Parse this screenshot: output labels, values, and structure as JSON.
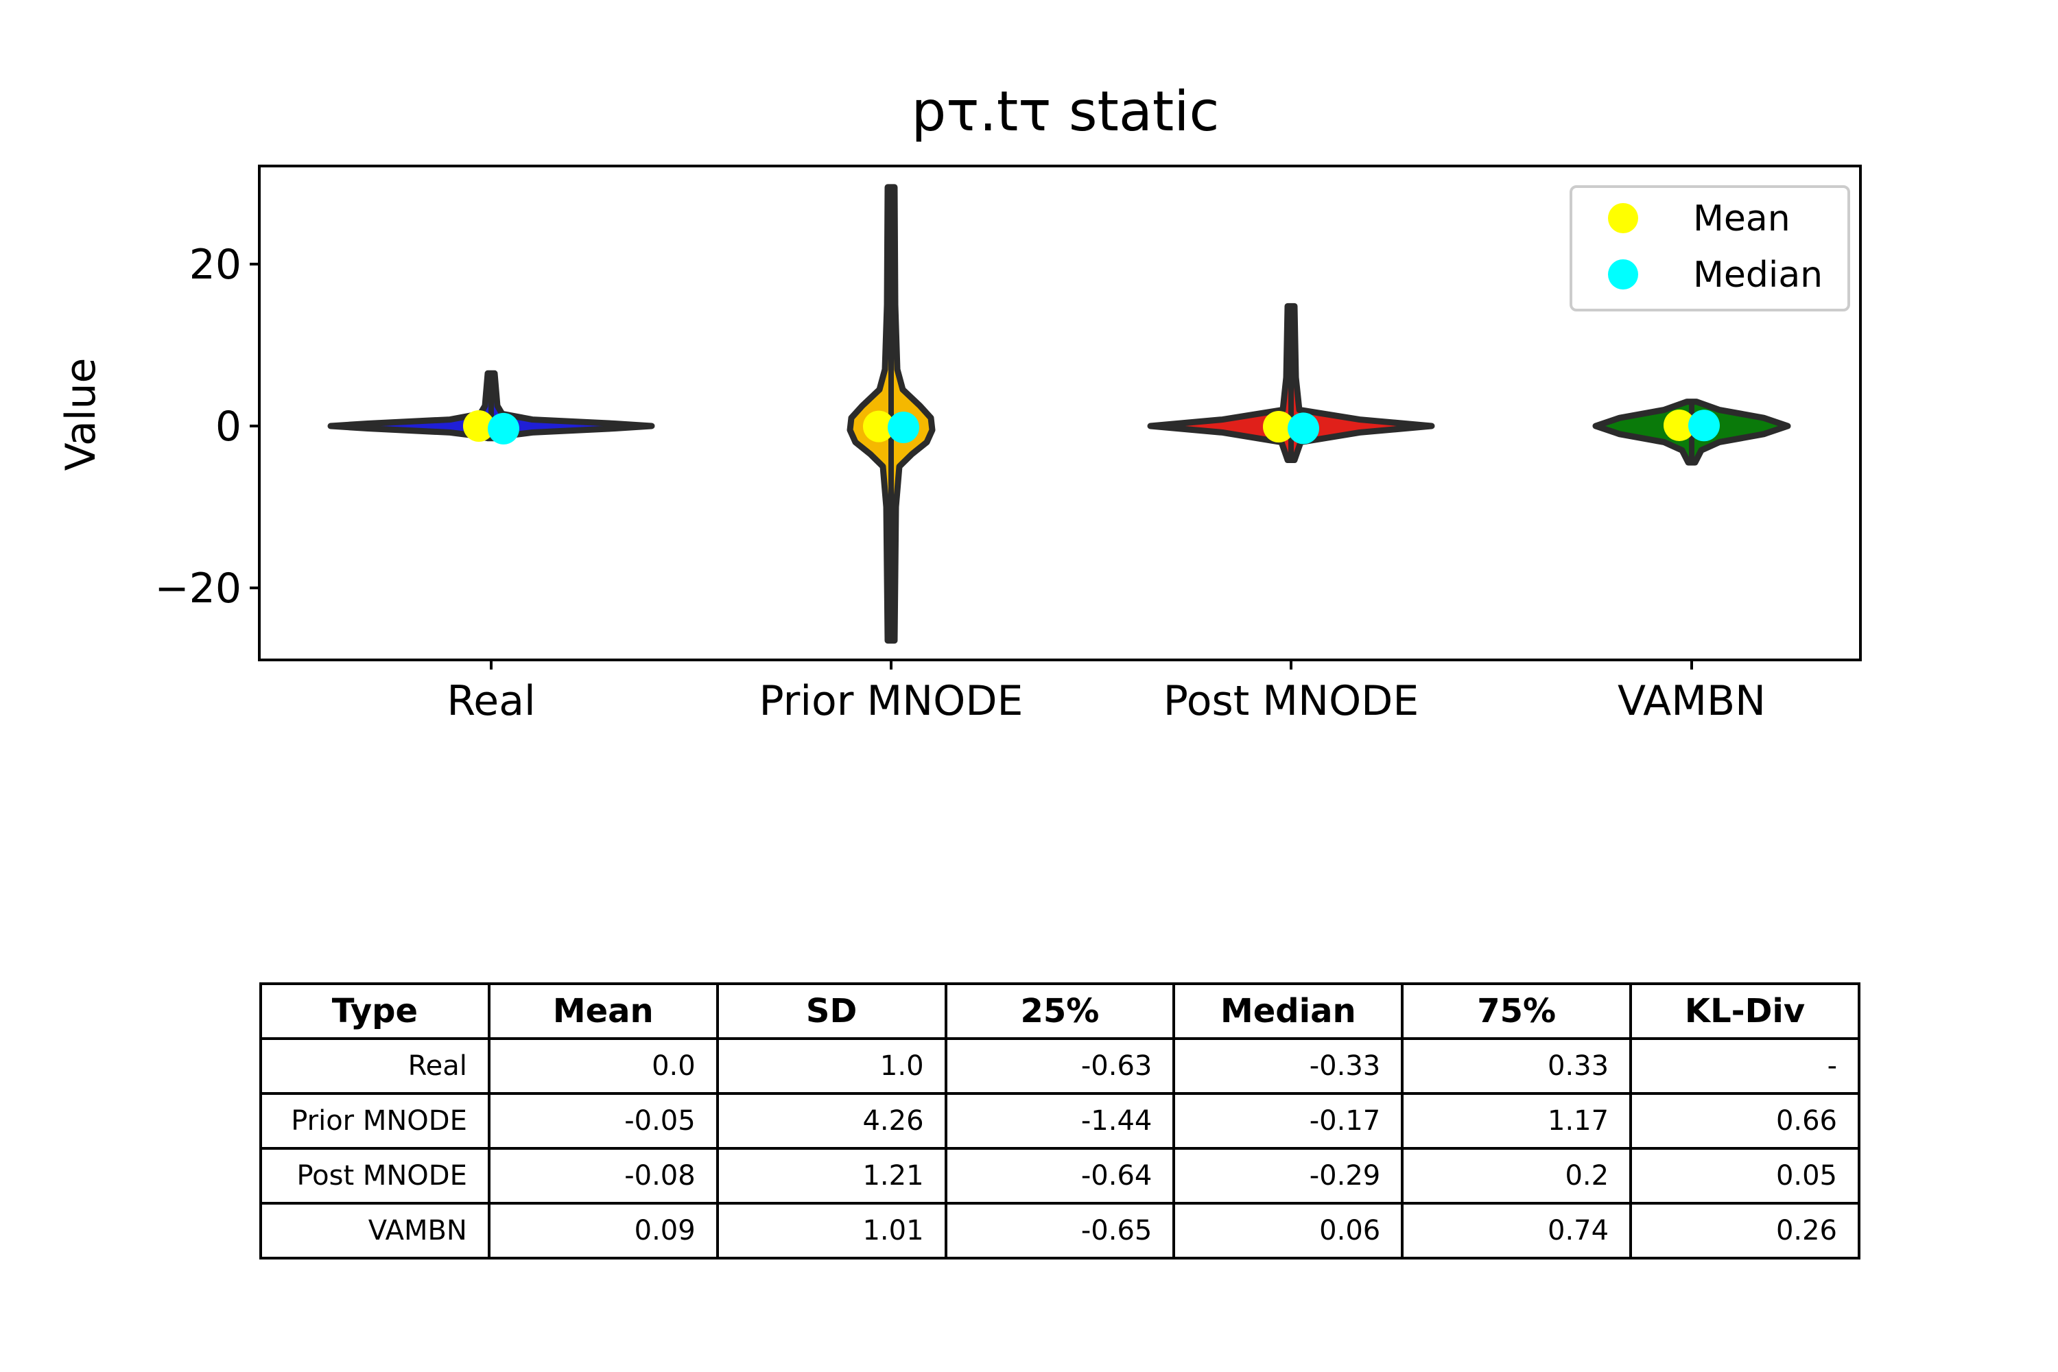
{
  "chart_data": {
    "type": "violin",
    "title": "pτ.tτ static",
    "xlabel": "",
    "ylabel": "Value",
    "ylim": [
      -29,
      32
    ],
    "yticks": [
      20,
      0,
      -20
    ],
    "ytick_labels": [
      "20",
      "0",
      "−20"
    ],
    "categories": [
      "Real",
      "Prior MNODE",
      "Post MNODE",
      "VAMBN"
    ],
    "colors": [
      "#1f1fd6",
      "#f5b800",
      "#e0201a",
      "#0a7a0a"
    ],
    "legend": {
      "placement": "top-right",
      "entries": [
        {
          "label": "Mean",
          "color": "#ffff00"
        },
        {
          "label": "Median",
          "color": "#00ffff"
        }
      ]
    },
    "series": [
      {
        "category": "Real",
        "min": -1.5,
        "max": 6.5,
        "mean": 0.0,
        "median": -0.33,
        "q1": -0.63,
        "q3": 0.33
      },
      {
        "category": "Prior MNODE",
        "min": -26.5,
        "max": 29.5,
        "mean": -0.05,
        "median": -0.17,
        "q1": -1.44,
        "q3": 1.17
      },
      {
        "category": "Post MNODE",
        "min": -4.2,
        "max": 14.8,
        "mean": -0.08,
        "median": -0.29,
        "q1": -0.64,
        "q3": 0.2
      },
      {
        "category": "VAMBN",
        "min": -4.5,
        "max": 3.0,
        "mean": 0.09,
        "median": 0.06,
        "q1": -0.65,
        "q3": 0.74
      }
    ],
    "table": {
      "columns": [
        "Type",
        "Mean",
        "SD",
        "25%",
        "Median",
        "75%",
        "KL-Div"
      ],
      "rows": [
        [
          "Real",
          "0.0",
          "1.0",
          "-0.63",
          "-0.33",
          "0.33",
          "-"
        ],
        [
          "Prior MNODE",
          "-0.05",
          "4.26",
          "-1.44",
          "-0.17",
          "1.17",
          "0.66"
        ],
        [
          "Post MNODE",
          "-0.08",
          "1.21",
          "-0.64",
          "-0.29",
          "0.2",
          "0.05"
        ],
        [
          "VAMBN",
          "0.09",
          "1.01",
          "-0.65",
          "0.06",
          "0.74",
          "0.26"
        ]
      ]
    }
  }
}
